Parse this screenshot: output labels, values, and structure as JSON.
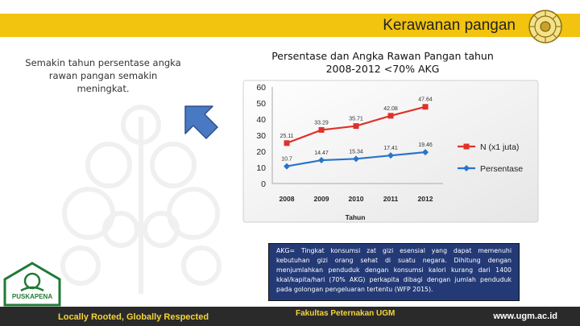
{
  "header": {
    "title": "Kerawanan pangan"
  },
  "left_panel": {
    "statement": "Semakin tahun persentase angka rawan pangan semakin meningkat."
  },
  "chart_title": "Persentase dan Angka Rawan Pangan tahun 2008-2012 <70% AKG",
  "chart_data": {
    "type": "line",
    "categories": [
      "2008",
      "2009",
      "2010",
      "2011",
      "2012"
    ],
    "series": [
      {
        "name": "N (x1 juta)",
        "color": "#e0312a",
        "values": [
          25.11,
          33.29,
          35.71,
          42.08,
          47.64
        ]
      },
      {
        "name": "Persentase",
        "color": "#2a74c9",
        "values": [
          10.7,
          14.47,
          15.34,
          17.41,
          19.46
        ]
      }
    ],
    "data_labels": {
      "N (x1 juta)": [
        "25.11",
        "33.29",
        "35.71",
        "42.08",
        "47.64"
      ],
      "Persentase": [
        "10.7",
        "14.47",
        "15.34",
        "17.41",
        "19.46"
      ]
    },
    "ylim": [
      0,
      60
    ],
    "yticks": [
      "0",
      "10",
      "20",
      "30",
      "40",
      "50",
      "60"
    ],
    "xlabel": "Tahun",
    "ylabel": "",
    "legend_position": "right",
    "grid": false
  },
  "note": {
    "text": "AKG= Tingkat konsumsi zat gizi esensial yang dapat memenuhi kebutuhan gizi orang sehat di suatu negara. Dihitung dengan menjumlahkan penduduk dengan konsumsi kalori kurang dari 1400 kkal/kapita/hari (70% AKG) perkapita dibagi dengan jumlah penduduk pada golongan pengeluaran tertentu (WFP 2015)."
  },
  "footer": {
    "tagline": "Locally Rooted, Globally Respected",
    "faculty": "Fakultas Peternakan UGM",
    "url": "www.ugm.ac.id"
  },
  "logo": {
    "text": "PUSKAPENA"
  },
  "colors": {
    "gold": "#f2c30f",
    "navy": "#243a76",
    "footer": "#2a2a2a",
    "arrow": "#4a79c4"
  }
}
